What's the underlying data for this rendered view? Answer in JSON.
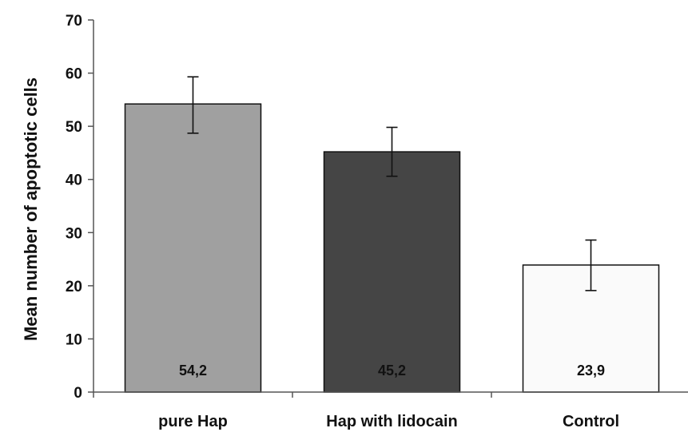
{
  "chart_data": {
    "type": "bar",
    "title": "",
    "xlabel": "",
    "ylabel": "Mean number of apoptotic cells",
    "ylim": [
      0,
      70
    ],
    "yticks": [
      0,
      10,
      20,
      30,
      40,
      50,
      60,
      70
    ],
    "grid": false,
    "legend": "none",
    "categories": [
      "pure Hap",
      "Hap with lidocain",
      "Control"
    ],
    "values": [
      54.2,
      45.2,
      23.9
    ],
    "value_labels": [
      "54,2",
      "45,2",
      "23,9"
    ],
    "error_bars": [
      {
        "lower": 48.7,
        "upper": 59.3
      },
      {
        "lower": 40.6,
        "upper": 49.8
      },
      {
        "lower": 19.1,
        "upper": 28.6
      }
    ],
    "bar_colors": [
      "#a0a0a0",
      "#454545",
      "#fafafa"
    ]
  }
}
